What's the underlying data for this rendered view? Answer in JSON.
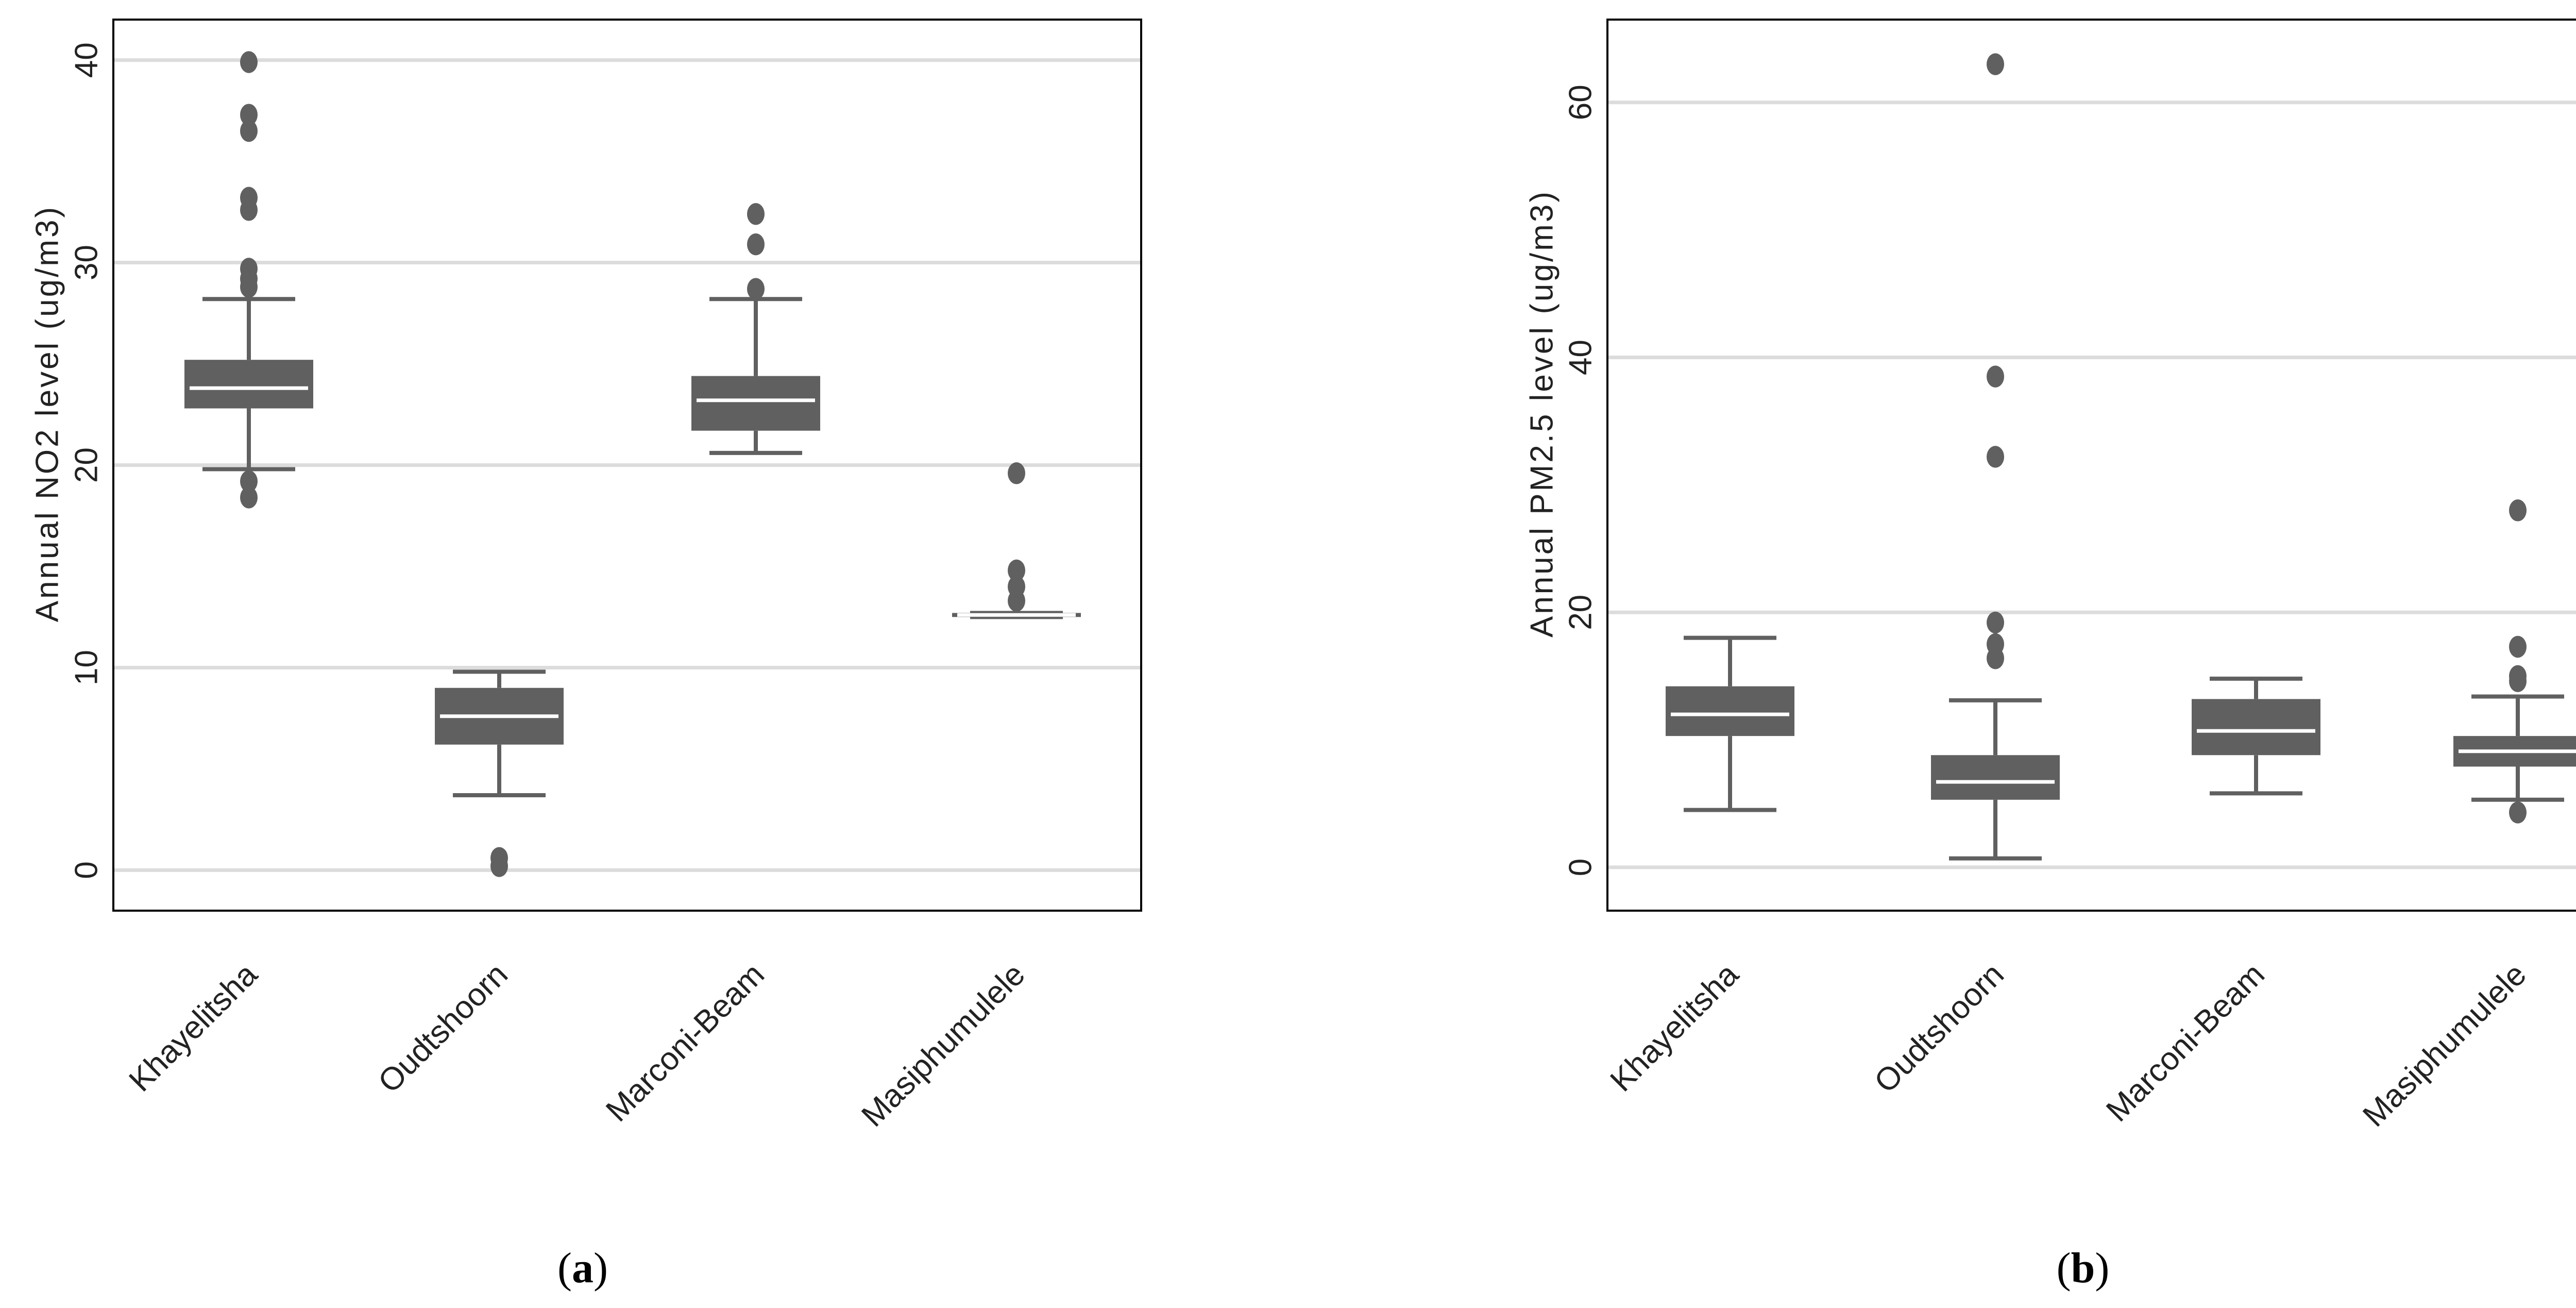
{
  "chart_data": [
    {
      "type": "box",
      "panel_label": "a",
      "title": "",
      "xlabel": "",
      "ylabel": "Annual NO2 level (ug/m3)",
      "ylim": [
        -2,
        42
      ],
      "yticks": [
        0,
        10,
        20,
        30,
        40
      ],
      "grid": "horizontal",
      "categories": [
        "Khayelitsha",
        "Oudtshoorn",
        "Marconi-Beam",
        "Masiphumulele"
      ],
      "boxes": [
        {
          "name": "Khayelitsha",
          "whisker_low": 19.8,
          "q1": 22.8,
          "median": 23.8,
          "q3": 25.2,
          "whisker_high": 28.2,
          "outliers": [
            18.4,
            19.2,
            28.8,
            29.2,
            29.7,
            32.6,
            33.2,
            36.5,
            37.3,
            39.9
          ]
        },
        {
          "name": "Oudtshoorn",
          "whisker_low": 3.7,
          "q1": 6.2,
          "median": 7.6,
          "q3": 9.0,
          "whisker_high": 9.8,
          "outliers": [
            0.2,
            0.6
          ]
        },
        {
          "name": "Marconi-Beam",
          "whisker_low": 20.6,
          "q1": 21.7,
          "median": 23.2,
          "q3": 24.4,
          "whisker_high": 28.2,
          "outliers": [
            28.7,
            30.9,
            32.4
          ]
        },
        {
          "name": "Masiphumulele",
          "whisker_low": 12.5,
          "q1": 12.5,
          "median": 12.6,
          "q3": 12.7,
          "whisker_high": 12.7,
          "outliers": [
            13.3,
            14.0,
            14.8,
            19.6
          ]
        }
      ]
    },
    {
      "type": "box",
      "panel_label": "b",
      "title": "",
      "xlabel": "",
      "ylabel": "Annual PM2.5 level (ug/m3)",
      "ylim": [
        -3.4,
        66.5
      ],
      "yticks": [
        0,
        20,
        40,
        60
      ],
      "grid": "horizontal",
      "categories": [
        "Khayelitsha",
        "Oudtshoorn",
        "Marconi-Beam",
        "Masiphumulele"
      ],
      "boxes": [
        {
          "name": "Khayelitsha",
          "whisker_low": 4.5,
          "q1": 10.3,
          "median": 12.0,
          "q3": 14.2,
          "whisker_high": 18.0,
          "outliers": []
        },
        {
          "name": "Oudtshoorn",
          "whisker_low": 0.7,
          "q1": 5.3,
          "median": 6.7,
          "q3": 8.8,
          "whisker_high": 13.1,
          "outliers": [
            16.4,
            17.5,
            19.2,
            32.2,
            38.5,
            63.0
          ]
        },
        {
          "name": "Marconi-Beam",
          "whisker_low": 5.8,
          "q1": 8.8,
          "median": 10.7,
          "q3": 13.2,
          "whisker_high": 14.8,
          "outliers": []
        },
        {
          "name": "Masiphumulele",
          "whisker_low": 5.3,
          "q1": 7.9,
          "median": 9.1,
          "q3": 10.3,
          "whisker_high": 13.4,
          "outliers": [
            4.3,
            14.6,
            15.0,
            17.3,
            28.0
          ]
        }
      ]
    }
  ],
  "style": {
    "box_color": "#606060",
    "median_color": "#ffffff",
    "grid_color": "#dcdcdc",
    "frame_color": "#000000",
    "text_color": "#222222"
  }
}
